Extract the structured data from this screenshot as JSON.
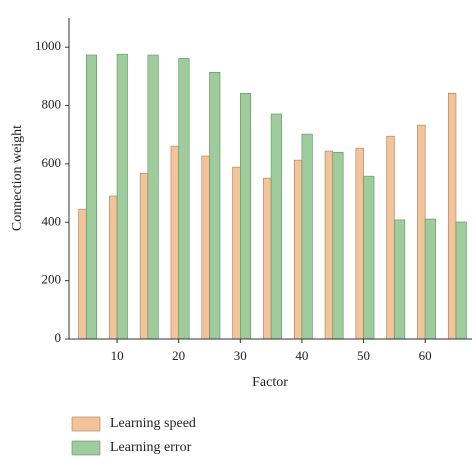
{
  "chart_data": {
    "type": "bar",
    "x_label": "Factor",
    "y_label": "Connection weight",
    "x": [
      5,
      10,
      15,
      20,
      25,
      30,
      35,
      40,
      45,
      50,
      55,
      60,
      65
    ],
    "series": [
      {
        "name": "Learning speed",
        "color": "#f2c49b",
        "values": [
          445,
          490,
          568,
          661,
          627,
          589,
          551,
          613,
          644,
          654,
          695,
          733,
          842
        ]
      },
      {
        "name": "Learning error",
        "color": "#9fcc9c",
        "values": [
          973,
          976,
          973,
          962,
          914,
          842,
          771,
          702,
          640,
          558,
          408,
          411,
          401
        ]
      }
    ],
    "xlim": [
      2.2,
      67.6
    ],
    "xticks": [
      10,
      20,
      30,
      40,
      50,
      60
    ],
    "ylim": [
      0,
      1100
    ],
    "yticks": [
      0,
      200,
      400,
      600,
      800,
      1000
    ]
  }
}
